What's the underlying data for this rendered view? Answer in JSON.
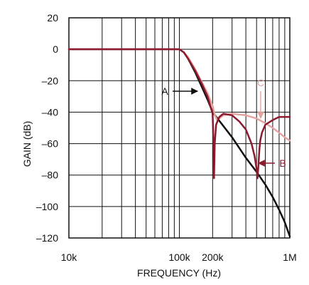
{
  "chart_data": {
    "type": "line",
    "title": "",
    "xlabel": "FREQUENCY (Hz)",
    "ylabel": "GAIN (dB)",
    "x_scale": "log",
    "xlim": [
      10000,
      1000000
    ],
    "ylim": [
      -120,
      20
    ],
    "grid": true,
    "y_ticks": [
      20,
      0,
      -20,
      -40,
      -60,
      -80,
      -100,
      -120
    ],
    "y_tick_labels": [
      "20",
      "0",
      "–20",
      "–40",
      "–60",
      "–80",
      "–100",
      "–120"
    ],
    "x_ticks": [
      10000,
      100000,
      200000,
      1000000
    ],
    "x_tick_labels": [
      "10k",
      "100k",
      "200k",
      "1M"
    ],
    "series": [
      {
        "name": "A",
        "color": "#111111",
        "x": [
          10000,
          50000,
          100000,
          110000,
          120000,
          140000,
          160000,
          180000,
          200000,
          300000,
          400000,
          500000,
          600000,
          700000,
          800000,
          900000,
          1000000
        ],
        "y": [
          0,
          0,
          0,
          -2,
          -6,
          -15,
          -24,
          -32,
          -40,
          -56,
          -69,
          -78,
          -86,
          -94,
          -102,
          -110,
          -119
        ]
      },
      {
        "name": "B",
        "color": "#8b1a2e",
        "x": [
          10000,
          50000,
          100000,
          110000,
          120000,
          140000,
          160000,
          180000,
          200000,
          203000,
          206000,
          209000,
          215000,
          230000,
          250000,
          300000,
          350000,
          400000,
          450000,
          480000,
          500000,
          510000,
          520000,
          530000,
          540000,
          560000,
          600000,
          700000,
          800000,
          900000,
          1000000
        ],
        "y": [
          0,
          0,
          0,
          -2,
          -6,
          -14,
          -22,
          -30,
          -41,
          -55,
          -82,
          -60,
          -48,
          -43,
          -41,
          -42,
          -46,
          -51,
          -60,
          -68,
          -76,
          -82,
          -74,
          -64,
          -58,
          -53,
          -48,
          -45,
          -43,
          -43,
          -43
        ]
      },
      {
        "name": "C",
        "color": "#e3a3a0",
        "x": [
          10000,
          50000,
          100000,
          110000,
          120000,
          140000,
          160000,
          180000,
          200000,
          210000,
          220000,
          230000,
          250000,
          300000,
          400000,
          500000,
          600000,
          700000,
          800000,
          900000,
          1000000
        ],
        "y": [
          0,
          0,
          0,
          -2,
          -5,
          -13,
          -21,
          -28,
          -36,
          -42,
          -45,
          -44,
          -42,
          -41,
          -42,
          -44,
          -47,
          -50,
          -53,
          -56,
          -58
        ]
      }
    ],
    "annotations": [
      {
        "label": "A",
        "series": "A",
        "arrow": "right"
      },
      {
        "label": "B",
        "series": "B",
        "arrow": "left"
      },
      {
        "label": "C",
        "series": "C",
        "arrow": "down"
      }
    ]
  }
}
